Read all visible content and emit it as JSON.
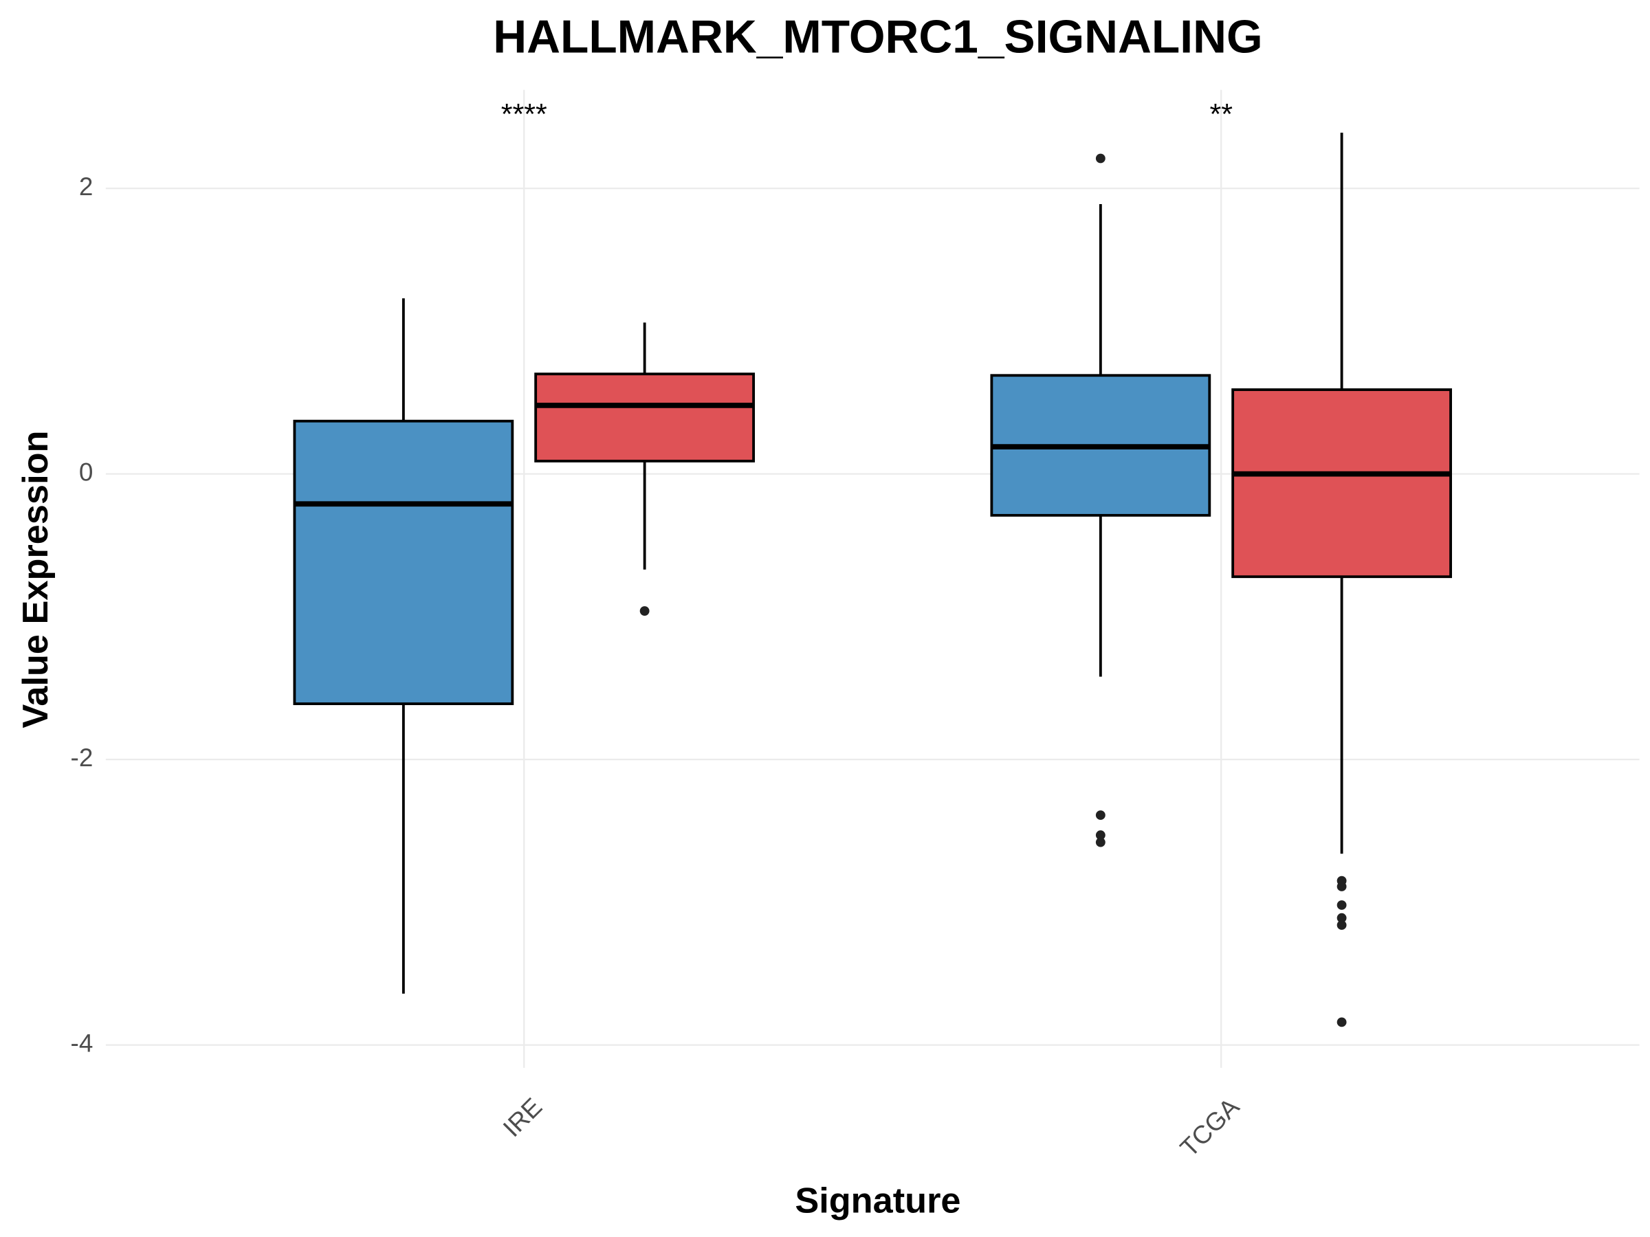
{
  "chart_data": {
    "type": "box",
    "title": "HALLMARK_MTORC1_SIGNALING",
    "x_label": "Signature",
    "y_label": "Value Expression",
    "categories": [
      "IRE",
      "TCGA"
    ],
    "annotations": [
      "****",
      "**"
    ],
    "series": [
      {
        "color": "#4b91c3",
        "boxes": [
          {
            "whisker_low": -3.64,
            "q1": -1.61,
            "median": -0.21,
            "q3": 0.37,
            "whisker_high": 1.23,
            "outliers": []
          },
          {
            "whisker_low": -1.42,
            "q1": -0.29,
            "median": 0.19,
            "q3": 0.69,
            "whisker_high": 1.89,
            "outliers": [
              2.21,
              -2.39,
              -2.53,
              -2.58
            ]
          }
        ]
      },
      {
        "color": "#df5256",
        "boxes": [
          {
            "whisker_low": -0.67,
            "q1": 0.09,
            "median": 0.48,
            "q3": 0.7,
            "whisker_high": 1.06,
            "outliers": [
              -0.96
            ]
          },
          {
            "whisker_low": -2.66,
            "q1": -0.72,
            "median": 0.0,
            "q3": 0.59,
            "whisker_high": 2.39,
            "outliers": [
              -2.85,
              -2.89,
              -3.02,
              -3.11,
              -3.16,
              -3.84
            ]
          }
        ]
      }
    ],
    "ylim": [
      -4.16,
      2.69
    ],
    "yticks": [
      -4,
      -2,
      0,
      2
    ],
    "grid": true
  }
}
